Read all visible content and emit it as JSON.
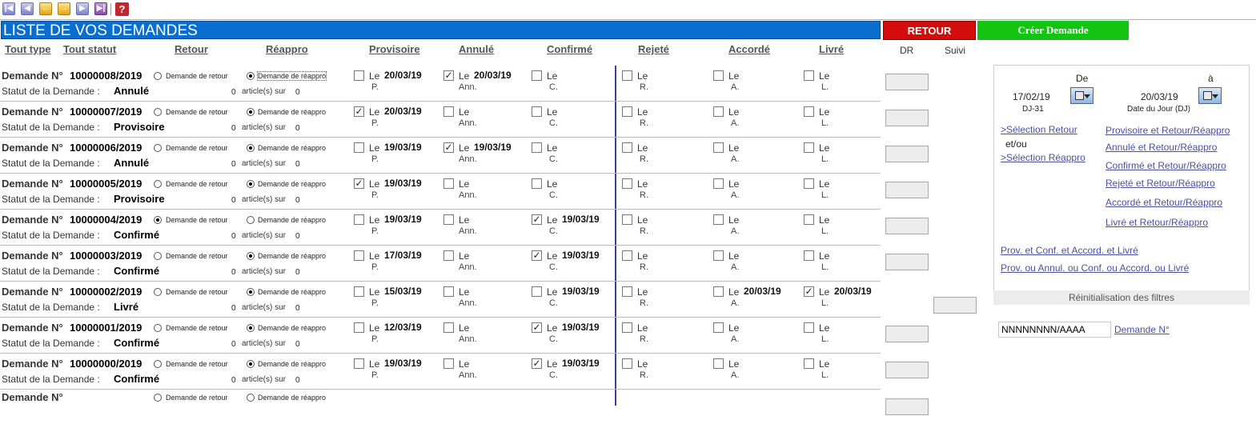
{
  "toolbar": {
    "help": "?"
  },
  "title": "LISTE DE VOS DEMANDES",
  "buttons": {
    "retour": "RETOUR",
    "creer": "Créer Demande"
  },
  "headers": {
    "tout_type": "Tout type",
    "tout_statut": "Tout statut",
    "retour": "Retour",
    "reappro": "Réappro",
    "provisoire": "Provisoire",
    "annule": "Annulé",
    "confirme": "Confirmé",
    "rejete": "Rejeté",
    "accorde": "Accordé",
    "livre": "Livré",
    "dr": "DR",
    "suivi": "Suivi"
  },
  "labels": {
    "demande": "Demande N°",
    "statut": "Statut de la Demande :",
    "radio_retour": "Demande de retour",
    "radio_reappro": "Demande de réappro",
    "zero": "0",
    "articles": "article(s) sur",
    "le": "Le",
    "p": "P.",
    "ann": "Ann.",
    "c": "C.",
    "r": "R.",
    "a": "A.",
    "l": "L."
  },
  "rows": [
    {
      "num": "10000008/2019",
      "status": "Annulé",
      "type": "reappro",
      "zero2": "0",
      "checks": {
        "p": false,
        "ann": true,
        "c": false,
        "r": false,
        "a": false,
        "l": false
      },
      "dates": {
        "p": "20/03/19",
        "ann": "20/03/19",
        "c": "",
        "r": "",
        "a": "",
        "l": ""
      }
    },
    {
      "num": "10000007/2019",
      "status": "Provisoire",
      "type": "reappro",
      "zero2": "0",
      "checks": {
        "p": true,
        "ann": false,
        "c": false,
        "r": false,
        "a": false,
        "l": false
      },
      "dates": {
        "p": "20/03/19",
        "ann": "",
        "c": "",
        "r": "",
        "a": "",
        "l": ""
      }
    },
    {
      "num": "10000006/2019",
      "status": "Annulé",
      "type": "reappro",
      "zero2": "0",
      "checks": {
        "p": false,
        "ann": true,
        "c": false,
        "r": false,
        "a": false,
        "l": false
      },
      "dates": {
        "p": "19/03/19",
        "ann": "19/03/19",
        "c": "",
        "r": "",
        "a": "",
        "l": ""
      }
    },
    {
      "num": "10000005/2019",
      "status": "Provisoire",
      "type": "reappro",
      "zero2": "0",
      "checks": {
        "p": true,
        "ann": false,
        "c": false,
        "r": false,
        "a": false,
        "l": false
      },
      "dates": {
        "p": "19/03/19",
        "ann": "",
        "c": "",
        "r": "",
        "a": "",
        "l": ""
      }
    },
    {
      "num": "10000004/2019",
      "status": "Confirmé",
      "type": "retour",
      "zero2": "0",
      "checks": {
        "p": false,
        "ann": false,
        "c": true,
        "r": false,
        "a": false,
        "l": false
      },
      "dates": {
        "p": "19/03/19",
        "ann": "",
        "c": "19/03/19",
        "r": "",
        "a": "",
        "l": ""
      }
    },
    {
      "num": "10000003/2019",
      "status": "Confirmé",
      "type": "reappro",
      "zero2": "0",
      "checks": {
        "p": false,
        "ann": false,
        "c": true,
        "r": false,
        "a": false,
        "l": false
      },
      "dates": {
        "p": "17/03/19",
        "ann": "",
        "c": "19/03/19",
        "r": "",
        "a": "",
        "l": ""
      }
    },
    {
      "num": "10000002/2019",
      "status": "Livré",
      "type": "reappro",
      "zero2": "0",
      "checks": {
        "p": false,
        "ann": false,
        "c": false,
        "r": false,
        "a": false,
        "l": true
      },
      "dates": {
        "p": "15/03/19",
        "ann": "",
        "c": "19/03/19",
        "r": "",
        "a": "20/03/19",
        "l": "20/03/19"
      }
    },
    {
      "num": "10000001/2019",
      "status": "Confirmé",
      "type": "reappro",
      "zero2": "0",
      "checks": {
        "p": false,
        "ann": false,
        "c": true,
        "r": false,
        "a": false,
        "l": false
      },
      "dates": {
        "p": "12/03/19",
        "ann": "",
        "c": "19/03/19",
        "r": "",
        "a": "",
        "l": ""
      }
    },
    {
      "num": "10000000/2019",
      "status": "Confirmé",
      "type": "reappro",
      "zero2": "0",
      "checks": {
        "p": false,
        "ann": false,
        "c": true,
        "r": false,
        "a": false,
        "l": false
      },
      "dates": {
        "p": "19/03/19",
        "ann": "",
        "c": "19/03/19",
        "r": "",
        "a": "",
        "l": ""
      }
    }
  ],
  "filters": {
    "de": "De",
    "a": "à",
    "date_from": "17/02/19",
    "date_from_label": "DJ-31",
    "date_to": "20/03/19",
    "date_to_label": "Date du Jour (DJ)",
    "sel_retour": ">Sélection Retour",
    "etou": "et/ou",
    "sel_reappro": ">Sélection Réappro",
    "links": [
      "Provisoire et Retour/Réappro",
      "Annulé et Retour/Réappro",
      "Confirmé et Retour/Réappro",
      "Rejeté et Retour/Réappro",
      "Accordé et Retour/Réappro",
      "Livré et Retour/Réappro"
    ],
    "combo_and": "Prov. et Conf. et Accord. et Livré",
    "combo_or": "Prov. ou Annul. ou Conf. ou Accord. ou Livré",
    "reinit": "Réinitialisation des filtres",
    "search_value": "NNNNNNNN/AAAA",
    "search_link": "Demande N°"
  }
}
